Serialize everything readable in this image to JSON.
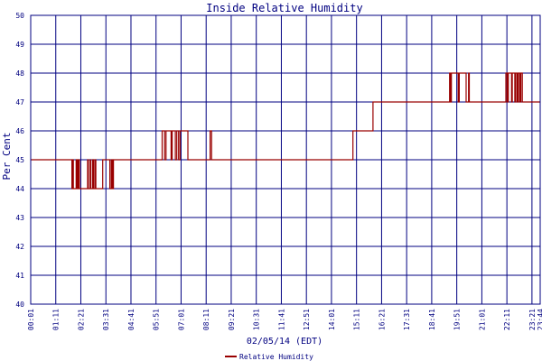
{
  "chart_data": {
    "type": "line",
    "title": "Inside Relative Humidity",
    "xlabel": "02/05/14 (EDT)",
    "ylabel": "Per Cent",
    "ylim": [
      40,
      50
    ],
    "yticks": [
      40,
      41,
      42,
      43,
      44,
      45,
      46,
      47,
      48,
      49,
      50
    ],
    "xlim": [
      "00:01",
      "23:44"
    ],
    "xticks": [
      "00:01",
      "01:11",
      "02:21",
      "03:31",
      "04:41",
      "05:51",
      "07:01",
      "08:11",
      "09:21",
      "10:31",
      "11:41",
      "12:51",
      "14:01",
      "15:11",
      "16:21",
      "17:31",
      "18:41",
      "19:51",
      "21:01",
      "22:11",
      "23:21",
      "23:44"
    ],
    "grid": true,
    "legend_position": "bottom-center",
    "series": [
      {
        "name": "Relative Humidity",
        "color": "#990000",
        "points": [
          [
            "00:01",
            45
          ],
          [
            "01:56",
            45
          ],
          [
            "01:56",
            44
          ],
          [
            "01:58",
            44
          ],
          [
            "01:58",
            45
          ],
          [
            "02:00",
            45
          ],
          [
            "02:00",
            44
          ],
          [
            "02:08",
            44
          ],
          [
            "02:08",
            45
          ],
          [
            "02:11",
            45
          ],
          [
            "02:11",
            44
          ],
          [
            "02:14",
            44
          ],
          [
            "02:14",
            45
          ],
          [
            "02:17",
            45
          ],
          [
            "02:17",
            44
          ],
          [
            "02:40",
            44
          ],
          [
            "02:40",
            45
          ],
          [
            "02:42",
            45
          ],
          [
            "02:42",
            44
          ],
          [
            "02:47",
            44
          ],
          [
            "02:47",
            45
          ],
          [
            "02:49",
            45
          ],
          [
            "02:49",
            44
          ],
          [
            "02:54",
            44
          ],
          [
            "02:54",
            45
          ],
          [
            "02:56",
            45
          ],
          [
            "02:56",
            44
          ],
          [
            "03:00",
            44
          ],
          [
            "03:00",
            45
          ],
          [
            "03:03",
            45
          ],
          [
            "03:03",
            44
          ],
          [
            "03:22",
            44
          ],
          [
            "03:22",
            45
          ],
          [
            "03:42",
            45
          ],
          [
            "03:42",
            44
          ],
          [
            "03:46",
            44
          ],
          [
            "03:46",
            45
          ],
          [
            "03:49",
            45
          ],
          [
            "03:49",
            44
          ],
          [
            "03:52",
            44
          ],
          [
            "03:52",
            45
          ],
          [
            "06:08",
            45
          ],
          [
            "06:08",
            46
          ],
          [
            "06:15",
            46
          ],
          [
            "06:15",
            45
          ],
          [
            "06:19",
            45
          ],
          [
            "06:19",
            46
          ],
          [
            "06:33",
            46
          ],
          [
            "06:33",
            45
          ],
          [
            "06:36",
            45
          ],
          [
            "06:36",
            46
          ],
          [
            "06:45",
            46
          ],
          [
            "06:45",
            45
          ],
          [
            "06:49",
            45
          ],
          [
            "06:49",
            46
          ],
          [
            "06:54",
            46
          ],
          [
            "06:54",
            45
          ],
          [
            "06:58",
            45
          ],
          [
            "06:58",
            46
          ],
          [
            "07:20",
            46
          ],
          [
            "07:20",
            45
          ],
          [
            "08:22",
            45
          ],
          [
            "08:22",
            46
          ],
          [
            "08:26",
            46
          ],
          [
            "08:26",
            45
          ],
          [
            "15:01",
            45
          ],
          [
            "15:01",
            46
          ],
          [
            "15:57",
            46
          ],
          [
            "15:57",
            47
          ],
          [
            "19:31",
            47
          ],
          [
            "19:31",
            48
          ],
          [
            "19:33",
            48
          ],
          [
            "19:33",
            47
          ],
          [
            "19:36",
            47
          ],
          [
            "19:36",
            48
          ],
          [
            "19:55",
            48
          ],
          [
            "19:55",
            47
          ],
          [
            "19:58",
            47
          ],
          [
            "19:58",
            48
          ],
          [
            "20:17",
            48
          ],
          [
            "20:17",
            47
          ],
          [
            "20:24",
            47
          ],
          [
            "20:24",
            48
          ],
          [
            "20:26",
            48
          ],
          [
            "20:26",
            47
          ],
          [
            "22:08",
            47
          ],
          [
            "22:08",
            48
          ],
          [
            "22:12",
            48
          ],
          [
            "22:12",
            47
          ],
          [
            "22:15",
            47
          ],
          [
            "22:15",
            48
          ],
          [
            "22:24",
            48
          ],
          [
            "22:24",
            47
          ],
          [
            "22:26",
            47
          ],
          [
            "22:26",
            48
          ],
          [
            "22:33",
            48
          ],
          [
            "22:33",
            47
          ],
          [
            "22:36",
            47
          ],
          [
            "22:36",
            48
          ],
          [
            "22:40",
            48
          ],
          [
            "22:40",
            47
          ],
          [
            "22:43",
            47
          ],
          [
            "22:43",
            48
          ],
          [
            "22:47",
            48
          ],
          [
            "22:47",
            47
          ],
          [
            "22:50",
            47
          ],
          [
            "22:50",
            48
          ],
          [
            "22:54",
            48
          ],
          [
            "22:54",
            47
          ],
          [
            "23:44",
            47
          ]
        ]
      }
    ]
  }
}
